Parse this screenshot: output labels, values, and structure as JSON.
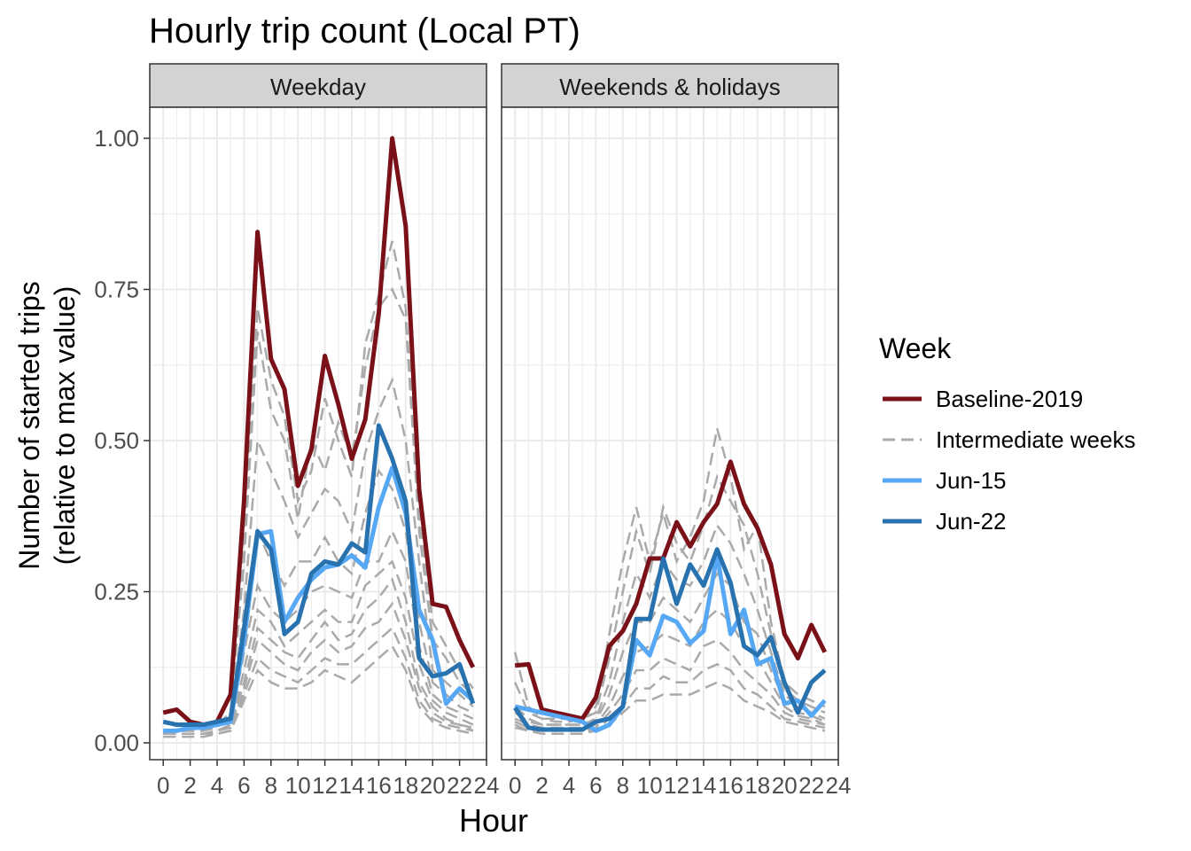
{
  "chart_data": {
    "type": "line",
    "title": "Hourly trip count (Local PT)",
    "xlabel": "Hour",
    "ylabel_line1": "Number of started trips",
    "ylabel_line2": "(relative to max value)",
    "xlim": [
      -1,
      24
    ],
    "ylim": [
      -0.025,
      1.05
    ],
    "x_ticks": [
      0,
      2,
      4,
      6,
      8,
      10,
      12,
      14,
      16,
      18,
      20,
      22,
      24
    ],
    "y_ticks": [
      0.0,
      0.25,
      0.5,
      0.75,
      1.0
    ],
    "y_tick_labels": [
      "0.00",
      "0.25",
      "0.50",
      "0.75",
      "1.00"
    ],
    "grid": true,
    "legend": {
      "title": "Week",
      "position": "right",
      "entries": [
        {
          "label": "Baseline-2019",
          "color": "#7b1118",
          "dash": "solid"
        },
        {
          "label": "Intermediate weeks",
          "color": "#aaaaaa",
          "dash": "dashed"
        },
        {
          "label": "Jun-15",
          "color": "#56a8f5",
          "dash": "solid"
        },
        {
          "label": "Jun-22",
          "color": "#2872b0",
          "dash": "solid"
        }
      ]
    },
    "panels": [
      {
        "name": "Weekday",
        "series": [
          {
            "name": "Baseline-2019",
            "color": "#7b1118",
            "x": [
              0,
              1,
              2,
              3,
              4,
              5,
              6,
              7,
              8,
              9,
              10,
              11,
              12,
              13,
              14,
              15,
              16,
              17,
              18,
              19,
              20,
              21,
              22,
              23
            ],
            "values": [
              0.05,
              0.055,
              0.035,
              0.03,
              0.035,
              0.08,
              0.4,
              0.845,
              0.635,
              0.585,
              0.425,
              0.485,
              0.64,
              0.56,
              0.47,
              0.535,
              0.71,
              1.0,
              0.855,
              0.42,
              0.23,
              0.225,
              0.17,
              0.125
            ]
          },
          {
            "name": "Jun-15",
            "color": "#56a8f5",
            "x": [
              0,
              1,
              2,
              3,
              4,
              5,
              6,
              7,
              8,
              9,
              10,
              11,
              12,
              13,
              14,
              15,
              16,
              17,
              18,
              19,
              20,
              21,
              22,
              23
            ],
            "values": [
              0.02,
              0.02,
              0.025,
              0.025,
              0.03,
              0.035,
              0.17,
              0.345,
              0.35,
              0.2,
              0.24,
              0.27,
              0.29,
              0.295,
              0.31,
              0.29,
              0.39,
              0.455,
              0.38,
              0.22,
              0.17,
              0.065,
              0.09,
              0.07
            ]
          },
          {
            "name": "Jun-22",
            "color": "#2872b0",
            "x": [
              0,
              1,
              2,
              3,
              4,
              5,
              6,
              7,
              8,
              9,
              10,
              11,
              12,
              13,
              14,
              15,
              16,
              17,
              18,
              19,
              20,
              21,
              22,
              23
            ],
            "values": [
              0.035,
              0.03,
              0.03,
              0.03,
              0.035,
              0.04,
              0.19,
              0.35,
              0.32,
              0.18,
              0.2,
              0.28,
              0.3,
              0.295,
              0.33,
              0.315,
              0.525,
              0.47,
              0.4,
              0.14,
              0.11,
              0.115,
              0.13,
              0.065
            ]
          }
        ],
        "intermediate": [
          [
            0.02,
            0.02,
            0.02,
            0.02,
            0.025,
            0.05,
            0.35,
            0.72,
            0.6,
            0.54,
            0.4,
            0.45,
            0.57,
            0.5,
            0.44,
            0.66,
            0.74,
            0.83,
            0.72,
            0.38,
            0.2,
            0.16,
            0.12,
            0.09
          ],
          [
            0.02,
            0.02,
            0.02,
            0.02,
            0.03,
            0.05,
            0.3,
            0.68,
            0.55,
            0.5,
            0.37,
            0.5,
            0.45,
            0.53,
            0.47,
            0.62,
            0.72,
            0.75,
            0.7,
            0.35,
            0.17,
            0.14,
            0.1,
            0.08
          ],
          [
            0.02,
            0.02,
            0.02,
            0.02,
            0.03,
            0.04,
            0.22,
            0.5,
            0.45,
            0.4,
            0.34,
            0.38,
            0.42,
            0.4,
            0.35,
            0.48,
            0.55,
            0.6,
            0.5,
            0.3,
            0.12,
            0.1,
            0.08,
            0.06
          ],
          [
            0.015,
            0.015,
            0.015,
            0.015,
            0.02,
            0.03,
            0.18,
            0.35,
            0.3,
            0.26,
            0.3,
            0.3,
            0.34,
            0.3,
            0.28,
            0.38,
            0.45,
            0.42,
            0.35,
            0.2,
            0.1,
            0.08,
            0.06,
            0.05
          ],
          [
            0.015,
            0.015,
            0.015,
            0.015,
            0.02,
            0.03,
            0.15,
            0.26,
            0.22,
            0.2,
            0.22,
            0.25,
            0.26,
            0.25,
            0.24,
            0.3,
            0.3,
            0.35,
            0.3,
            0.16,
            0.08,
            0.06,
            0.05,
            0.04
          ],
          [
            0.015,
            0.015,
            0.015,
            0.015,
            0.02,
            0.025,
            0.12,
            0.22,
            0.2,
            0.16,
            0.18,
            0.2,
            0.22,
            0.2,
            0.2,
            0.26,
            0.28,
            0.3,
            0.24,
            0.13,
            0.07,
            0.05,
            0.04,
            0.03
          ],
          [
            0.015,
            0.015,
            0.015,
            0.015,
            0.02,
            0.025,
            0.1,
            0.19,
            0.17,
            0.15,
            0.14,
            0.17,
            0.2,
            0.17,
            0.18,
            0.22,
            0.24,
            0.27,
            0.2,
            0.1,
            0.06,
            0.04,
            0.03,
            0.025
          ],
          [
            0.015,
            0.015,
            0.015,
            0.015,
            0.015,
            0.02,
            0.09,
            0.17,
            0.15,
            0.13,
            0.12,
            0.15,
            0.17,
            0.15,
            0.16,
            0.19,
            0.2,
            0.23,
            0.17,
            0.09,
            0.05,
            0.035,
            0.03,
            0.02
          ],
          [
            0.015,
            0.015,
            0.015,
            0.015,
            0.015,
            0.02,
            0.08,
            0.14,
            0.12,
            0.11,
            0.1,
            0.12,
            0.14,
            0.13,
            0.13,
            0.15,
            0.17,
            0.19,
            0.14,
            0.07,
            0.04,
            0.03,
            0.025,
            0.02
          ],
          [
            0.01,
            0.01,
            0.01,
            0.01,
            0.015,
            0.02,
            0.07,
            0.12,
            0.1,
            0.09,
            0.09,
            0.1,
            0.12,
            0.11,
            0.1,
            0.12,
            0.14,
            0.16,
            0.12,
            0.06,
            0.035,
            0.025,
            0.02,
            0.015
          ]
        ]
      },
      {
        "name": "Weekends & holidays",
        "series": [
          {
            "name": "Baseline-2019",
            "color": "#7b1118",
            "x": [
              0,
              1,
              2,
              3,
              4,
              5,
              6,
              7,
              8,
              9,
              10,
              11,
              12,
              13,
              14,
              15,
              16,
              17,
              18,
              19,
              20,
              21,
              22,
              23
            ],
            "values": [
              0.128,
              0.13,
              0.055,
              0.05,
              0.045,
              0.04,
              0.075,
              0.16,
              0.185,
              0.23,
              0.305,
              0.305,
              0.365,
              0.325,
              0.365,
              0.395,
              0.465,
              0.395,
              0.355,
              0.295,
              0.18,
              0.14,
              0.195,
              0.15
            ]
          },
          {
            "name": "Jun-15",
            "color": "#56a8f5",
            "x": [
              0,
              1,
              2,
              3,
              4,
              5,
              6,
              7,
              8,
              9,
              10,
              11,
              12,
              13,
              14,
              15,
              16,
              17,
              18,
              19,
              20,
              21,
              22,
              23
            ],
            "values": [
              0.06,
              0.055,
              0.05,
              0.045,
              0.04,
              0.035,
              0.02,
              0.03,
              0.06,
              0.17,
              0.145,
              0.21,
              0.2,
              0.165,
              0.185,
              0.31,
              0.18,
              0.22,
              0.13,
              0.14,
              0.065,
              0.07,
              0.045,
              0.07
            ]
          },
          {
            "name": "Jun-22",
            "color": "#2872b0",
            "x": [
              0,
              1,
              2,
              3,
              4,
              5,
              6,
              7,
              8,
              9,
              10,
              11,
              12,
              13,
              14,
              15,
              16,
              17,
              18,
              19,
              20,
              21,
              22,
              23
            ],
            "values": [
              0.058,
              0.025,
              0.022,
              0.022,
              0.022,
              0.022,
              0.035,
              0.04,
              0.06,
              0.205,
              0.205,
              0.305,
              0.23,
              0.295,
              0.26,
              0.32,
              0.265,
              0.16,
              0.145,
              0.175,
              0.1,
              0.05,
              0.1,
              0.12
            ]
          }
        ],
        "intermediate": [
          [
            0.15,
            0.06,
            0.04,
            0.04,
            0.04,
            0.04,
            0.06,
            0.18,
            0.3,
            0.39,
            0.3,
            0.38,
            0.3,
            0.34,
            0.4,
            0.52,
            0.44,
            0.32,
            0.36,
            0.2,
            0.1,
            0.08,
            0.07,
            0.06
          ],
          [
            0.1,
            0.05,
            0.04,
            0.035,
            0.035,
            0.04,
            0.05,
            0.14,
            0.25,
            0.35,
            0.28,
            0.39,
            0.33,
            0.3,
            0.36,
            0.44,
            0.4,
            0.36,
            0.28,
            0.18,
            0.09,
            0.07,
            0.06,
            0.05
          ],
          [
            0.06,
            0.04,
            0.03,
            0.03,
            0.03,
            0.03,
            0.04,
            0.1,
            0.2,
            0.28,
            0.24,
            0.3,
            0.27,
            0.26,
            0.3,
            0.36,
            0.33,
            0.28,
            0.22,
            0.15,
            0.08,
            0.06,
            0.05,
            0.04
          ],
          [
            0.05,
            0.035,
            0.03,
            0.03,
            0.03,
            0.03,
            0.035,
            0.08,
            0.15,
            0.2,
            0.2,
            0.24,
            0.22,
            0.2,
            0.24,
            0.28,
            0.26,
            0.2,
            0.18,
            0.12,
            0.07,
            0.05,
            0.045,
            0.035
          ],
          [
            0.04,
            0.03,
            0.025,
            0.025,
            0.025,
            0.025,
            0.03,
            0.06,
            0.11,
            0.15,
            0.16,
            0.18,
            0.17,
            0.16,
            0.2,
            0.22,
            0.2,
            0.16,
            0.14,
            0.1,
            0.06,
            0.045,
            0.04,
            0.03
          ],
          [
            0.035,
            0.025,
            0.02,
            0.02,
            0.02,
            0.02,
            0.025,
            0.05,
            0.08,
            0.12,
            0.12,
            0.14,
            0.13,
            0.12,
            0.16,
            0.17,
            0.15,
            0.12,
            0.1,
            0.08,
            0.05,
            0.04,
            0.035,
            0.03
          ],
          [
            0.03,
            0.02,
            0.02,
            0.02,
            0.02,
            0.02,
            0.02,
            0.04,
            0.06,
            0.09,
            0.09,
            0.11,
            0.1,
            0.1,
            0.12,
            0.13,
            0.12,
            0.09,
            0.08,
            0.06,
            0.04,
            0.035,
            0.03,
            0.025
          ],
          [
            0.025,
            0.02,
            0.015,
            0.015,
            0.015,
            0.015,
            0.02,
            0.03,
            0.05,
            0.07,
            0.07,
            0.08,
            0.08,
            0.08,
            0.09,
            0.1,
            0.09,
            0.07,
            0.06,
            0.05,
            0.035,
            0.03,
            0.025,
            0.02
          ]
        ]
      }
    ]
  }
}
